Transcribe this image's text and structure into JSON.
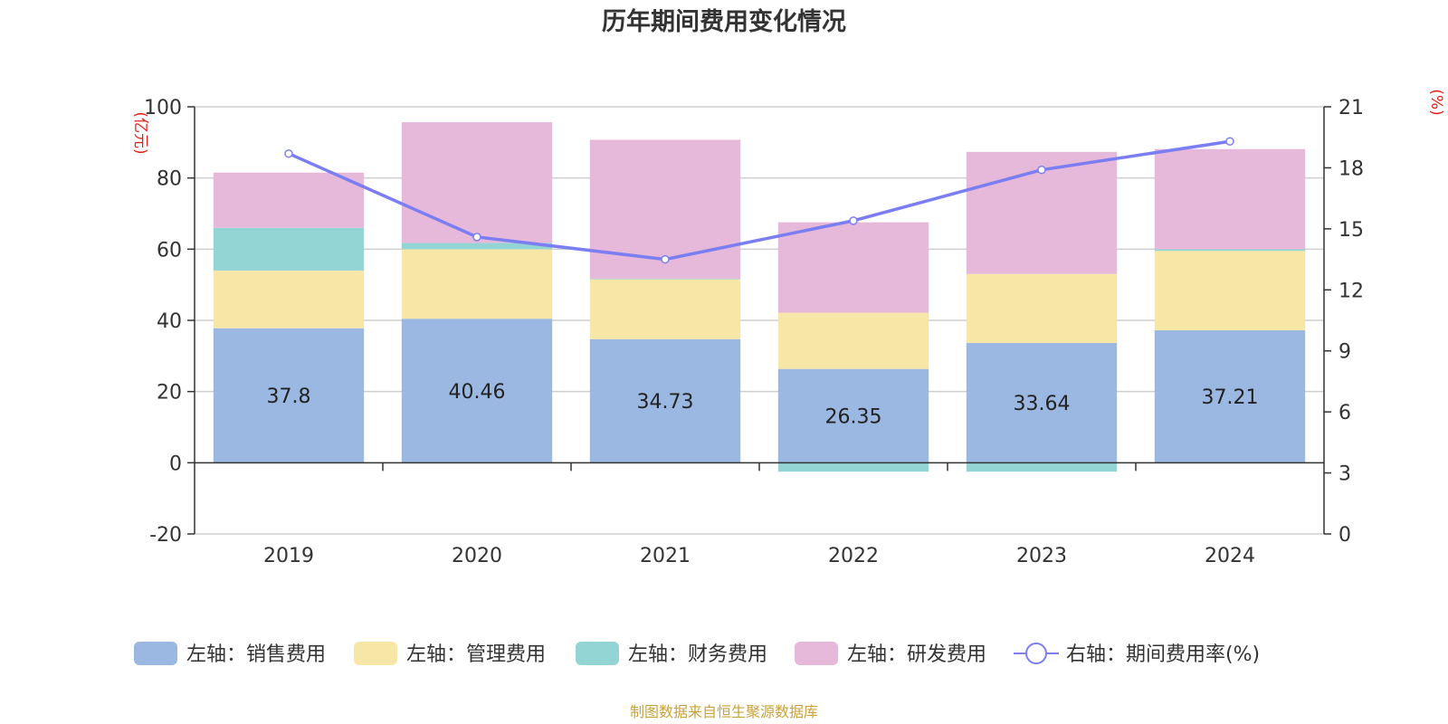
{
  "chart_data": {
    "type": "bar",
    "stacked": true,
    "title": "历年期间费用变化情况",
    "categories": [
      "2019",
      "2020",
      "2021",
      "2022",
      "2023",
      "2024"
    ],
    "left_axis": {
      "unit": "(亿元)",
      "ylim": [
        -20,
        100
      ],
      "ticks": [
        "100",
        "80",
        "60",
        "40",
        "20",
        "0",
        "-20"
      ],
      "tick_values": [
        100,
        80,
        60,
        40,
        20,
        0,
        -20
      ]
    },
    "right_axis": {
      "unit": "(%)",
      "ylim": [
        0,
        21
      ],
      "ticks": [
        "21",
        "18",
        "15",
        "12",
        "9",
        "6",
        "3",
        "0"
      ],
      "tick_values": [
        21,
        18,
        15,
        12,
        9,
        6,
        3,
        0
      ]
    },
    "series": [
      {
        "name": "左轴：销售费用",
        "axis": "left",
        "color": "#9bb8e2",
        "values": [
          37.8,
          40.46,
          34.73,
          26.35,
          33.64,
          37.21
        ],
        "labels": [
          "37.8",
          "40.46",
          "34.73",
          "26.35",
          "33.64",
          "37.21"
        ]
      },
      {
        "name": "左轴：管理费用",
        "axis": "left",
        "color": "#f7e7a6",
        "values": [
          16.2,
          19.5,
          16.8,
          15.8,
          19.4,
          22.3
        ]
      },
      {
        "name": "左轴：财务费用",
        "axis": "left",
        "color": "#93d4d4",
        "values": [
          12.0,
          1.8,
          0.2,
          -2.5,
          -2.5,
          0.5
        ]
      },
      {
        "name": "左轴：研发费用",
        "axis": "left",
        "color": "#e6b8d9",
        "values": [
          15.5,
          33.9,
          39.0,
          25.4,
          34.3,
          28.1
        ]
      },
      {
        "name": "右轴：期间费用率(%)",
        "axis": "right",
        "type": "line",
        "color": "#7b7ef2",
        "values": [
          18.7,
          14.6,
          13.5,
          15.4,
          17.9,
          19.3
        ]
      }
    ],
    "legend_position": "bottom",
    "grid": true
  },
  "source": "制图数据来自恒生聚源数据库"
}
